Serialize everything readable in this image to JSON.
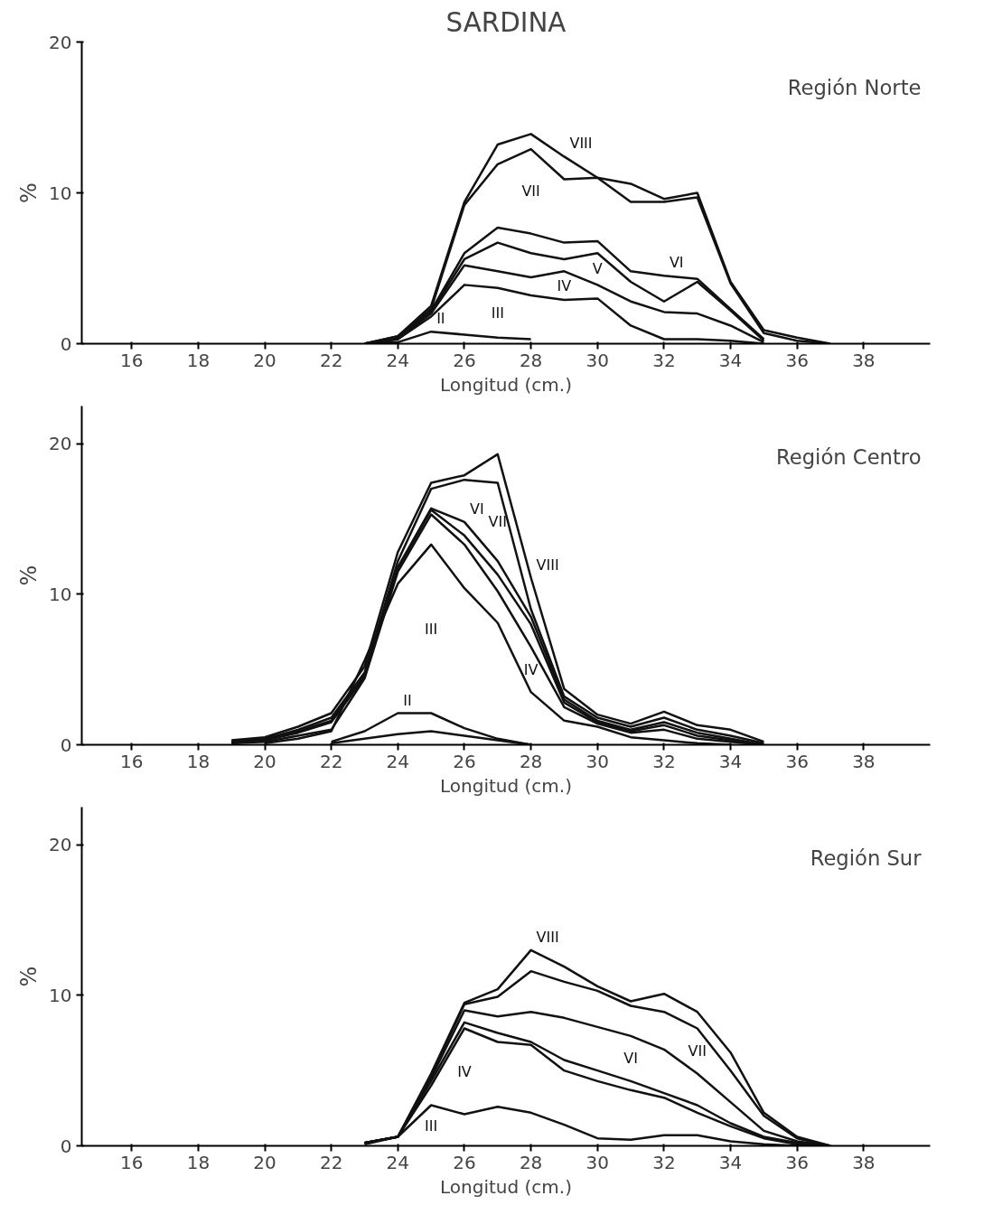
{
  "chart_data": [
    {
      "type": "line",
      "title": "SARDINA",
      "subtitle": "Región Norte",
      "xlabel": "Longitud (cm.)",
      "ylabel": "%",
      "xlim": [
        14.5,
        40
      ],
      "ylim": [
        0,
        20
      ],
      "xticks": [
        16,
        18,
        20,
        22,
        24,
        26,
        28,
        30,
        32,
        34,
        36,
        38
      ],
      "yticks": [
        0,
        10,
        20
      ],
      "grid": false,
      "marker": "none",
      "line_style": "solid",
      "series": [
        {
          "name": "VIII",
          "color": "#111111",
          "x": [
            23,
            24,
            25,
            26,
            27,
            28,
            29,
            30,
            31,
            32,
            33,
            34,
            35,
            36,
            37
          ],
          "values": [
            0,
            0.5,
            2.5,
            9.4,
            13.2,
            13.9,
            12.4,
            11.0,
            10.6,
            9.6,
            10.0,
            4.1,
            0.9,
            0.4,
            0
          ]
        },
        {
          "name": "VII",
          "color": "#111111",
          "x": [
            23,
            24,
            25,
            26,
            27,
            28,
            29,
            30,
            31,
            32,
            33,
            34,
            35,
            36,
            37
          ],
          "values": [
            0,
            0.5,
            2.3,
            9.2,
            11.9,
            12.9,
            10.9,
            11.0,
            9.4,
            9.4,
            9.7,
            4.0,
            0.7,
            0.2,
            0
          ]
        },
        {
          "name": "VI",
          "color": "#111111",
          "x": [
            23,
            24,
            25,
            26,
            27,
            28,
            29,
            30,
            31,
            32,
            33,
            34,
            35
          ],
          "values": [
            0,
            0.4,
            2.2,
            6.0,
            7.7,
            7.3,
            6.7,
            6.8,
            4.8,
            4.5,
            4.3,
            2.3,
            0.3
          ]
        },
        {
          "name": "V",
          "color": "#111111",
          "x": [
            23,
            24,
            25,
            26,
            27,
            28,
            29,
            30,
            31,
            32,
            33,
            34,
            35
          ],
          "values": [
            0,
            0.4,
            2.1,
            5.6,
            6.7,
            6.0,
            5.6,
            6.0,
            4.1,
            2.8,
            4.1,
            2.2,
            0.2
          ]
        },
        {
          "name": "IV",
          "color": "#111111",
          "x": [
            23,
            24,
            25,
            26,
            27,
            28,
            29,
            30,
            31,
            32,
            33,
            34,
            35
          ],
          "values": [
            0,
            0.3,
            2.0,
            5.2,
            4.8,
            4.4,
            4.8,
            3.9,
            2.8,
            2.1,
            2.0,
            1.2,
            0.1
          ]
        },
        {
          "name": "III",
          "color": "#111111",
          "x": [
            23,
            24,
            25,
            26,
            27,
            28,
            29,
            30,
            31,
            32,
            33,
            34,
            35
          ],
          "values": [
            0,
            0.3,
            1.8,
            3.9,
            3.7,
            3.2,
            2.9,
            3.0,
            1.2,
            0.3,
            0.3,
            0.2,
            0
          ]
        },
        {
          "name": "II",
          "color": "#111111",
          "x": [
            23,
            24,
            25,
            26,
            27,
            28
          ],
          "values": [
            0,
            0.1,
            0.8,
            0.6,
            0.4,
            0.3
          ]
        }
      ]
    },
    {
      "type": "line",
      "subtitle": "Región Centro",
      "xlabel": "Longitud (cm.)",
      "ylabel": "%",
      "xlim": [
        14.5,
        40
      ],
      "ylim": [
        0,
        22.5
      ],
      "xticks": [
        16,
        18,
        20,
        22,
        24,
        26,
        28,
        30,
        32,
        34,
        36,
        38
      ],
      "yticks": [
        0,
        10,
        20
      ],
      "grid": false,
      "marker": "none",
      "line_style": "solid",
      "series": [
        {
          "name": "VIII",
          "color": "#111111",
          "x": [
            19,
            20,
            21,
            22,
            23,
            24,
            25,
            26,
            27,
            28,
            29,
            30,
            31,
            32,
            33,
            34,
            35
          ],
          "values": [
            0.3,
            0.5,
            1.2,
            2.1,
            5.2,
            12.8,
            17.4,
            17.9,
            19.3,
            11.1,
            3.7,
            2.0,
            1.4,
            2.2,
            1.3,
            1.0,
            0.2
          ]
        },
        {
          "name": "VII",
          "color": "#111111",
          "x": [
            19,
            20,
            21,
            22,
            23,
            24,
            25,
            26,
            27,
            28,
            29,
            30,
            31,
            32,
            33,
            34,
            35
          ],
          "values": [
            0.2,
            0.4,
            1.0,
            1.8,
            4.8,
            12.2,
            17.0,
            17.6,
            17.4,
            9.0,
            3.2,
            1.8,
            1.2,
            1.8,
            1.0,
            0.6,
            0.1
          ]
        },
        {
          "name": "VI",
          "color": "#111111",
          "x": [
            19,
            20,
            21,
            22,
            23,
            24,
            25,
            26,
            27,
            28,
            29,
            30,
            31,
            32,
            33,
            34,
            35
          ],
          "values": [
            0.2,
            0.4,
            0.9,
            1.6,
            4.6,
            11.8,
            15.7,
            14.8,
            12.2,
            8.5,
            3.0,
            1.6,
            1.0,
            1.5,
            0.8,
            0.4,
            0
          ]
        },
        {
          "color": "#111111",
          "x": [
            19,
            20,
            21,
            22,
            23,
            24,
            25,
            26,
            27,
            28,
            29,
            30,
            31,
            32,
            33,
            34,
            35
          ],
          "values": [
            0.1,
            0.3,
            0.8,
            1.5,
            4.5,
            11.7,
            15.6,
            13.9,
            11.3,
            8.0,
            2.8,
            1.5,
            0.9,
            1.3,
            0.6,
            0.3,
            0
          ]
        },
        {
          "name": "IV",
          "color": "#111111",
          "x": [
            19,
            20,
            21,
            22,
            23,
            24,
            25,
            26,
            27,
            28,
            29,
            30,
            31,
            32,
            33,
            34,
            35
          ],
          "values": [
            0.1,
            0.2,
            0.6,
            1.0,
            4.4,
            11.5,
            15.3,
            13.3,
            10.2,
            6.5,
            2.5,
            1.4,
            0.8,
            1.0,
            0.4,
            0.2,
            0
          ]
        },
        {
          "name": "III",
          "color": "#111111",
          "x": [
            20,
            21,
            22,
            23,
            24,
            25,
            26,
            27,
            28,
            29,
            30,
            31,
            32,
            33,
            34
          ],
          "values": [
            0.1,
            0.4,
            0.9,
            5.6,
            10.7,
            13.3,
            10.4,
            8.1,
            3.5,
            1.6,
            1.2,
            0.5,
            0.3,
            0.1,
            0
          ]
        },
        {
          "name": "II",
          "color": "#111111",
          "x": [
            22,
            23,
            24,
            25,
            26,
            27,
            28
          ],
          "values": [
            0.2,
            0.9,
            2.1,
            2.1,
            1.1,
            0.4,
            0
          ]
        },
        {
          "color": "#111111",
          "x": [
            22,
            23,
            24,
            25,
            26,
            27,
            28
          ],
          "values": [
            0.1,
            0.4,
            0.7,
            0.9,
            0.6,
            0.3,
            0
          ]
        }
      ]
    },
    {
      "type": "line",
      "subtitle": "Región Sur",
      "xlabel": "Longitud (cm.)",
      "ylabel": "%",
      "xlim": [
        14.5,
        40
      ],
      "ylim": [
        0,
        22.5
      ],
      "xticks": [
        16,
        18,
        20,
        22,
        24,
        26,
        28,
        30,
        32,
        34,
        36,
        38
      ],
      "yticks": [
        0,
        10,
        20
      ],
      "grid": false,
      "marker": "none",
      "line_style": "solid",
      "series": [
        {
          "name": "VIII",
          "color": "#111111",
          "x": [
            23,
            24,
            25,
            26,
            27,
            28,
            29,
            30,
            31,
            32,
            33,
            34,
            35,
            36,
            37
          ],
          "values": [
            0.2,
            0.6,
            4.8,
            9.5,
            10.4,
            13.0,
            11.9,
            10.6,
            9.6,
            10.1,
            8.9,
            6.2,
            2.2,
            0.6,
            0
          ]
        },
        {
          "name": "VII",
          "color": "#111111",
          "x": [
            23,
            24,
            25,
            26,
            27,
            28,
            29,
            30,
            31,
            32,
            33,
            34,
            35,
            36,
            37
          ],
          "values": [
            0.2,
            0.6,
            4.7,
            9.4,
            9.9,
            11.6,
            10.9,
            10.3,
            9.3,
            8.9,
            7.8,
            5.0,
            2.0,
            0.5,
            0
          ]
        },
        {
          "name": "VI",
          "color": "#111111",
          "x": [
            23,
            24,
            25,
            26,
            27,
            28,
            29,
            30,
            31,
            32,
            33,
            34,
            35,
            36,
            37
          ],
          "values": [
            0.2,
            0.6,
            4.5,
            9.0,
            8.6,
            8.9,
            8.5,
            7.9,
            7.3,
            6.4,
            4.8,
            2.9,
            1.0,
            0.3,
            0
          ]
        },
        {
          "color": "#111111",
          "x": [
            23,
            24,
            25,
            26,
            27,
            28,
            29,
            30,
            31,
            32,
            33,
            34,
            35,
            36,
            37
          ],
          "values": [
            0.2,
            0.6,
            4.3,
            8.2,
            7.5,
            6.9,
            5.7,
            5.0,
            4.3,
            3.5,
            2.7,
            1.5,
            0.6,
            0.2,
            0
          ]
        },
        {
          "name": "IV",
          "color": "#111111",
          "x": [
            23,
            24,
            25,
            26,
            27,
            28,
            29,
            30,
            31,
            32,
            33,
            34,
            35,
            36,
            37
          ],
          "values": [
            0.2,
            0.6,
            4.0,
            7.8,
            6.9,
            6.7,
            5.0,
            4.3,
            3.7,
            3.2,
            2.2,
            1.3,
            0.5,
            0.1,
            0
          ]
        },
        {
          "name": "III",
          "color": "#111111",
          "x": [
            23,
            24,
            25,
            26,
            27,
            28,
            29,
            30,
            31,
            32,
            33,
            34,
            35,
            36
          ],
          "values": [
            0.1,
            0.6,
            2.7,
            2.1,
            2.6,
            2.2,
            1.4,
            0.5,
            0.4,
            0.7,
            0.7,
            0.3,
            0.1,
            0
          ]
        }
      ]
    }
  ]
}
